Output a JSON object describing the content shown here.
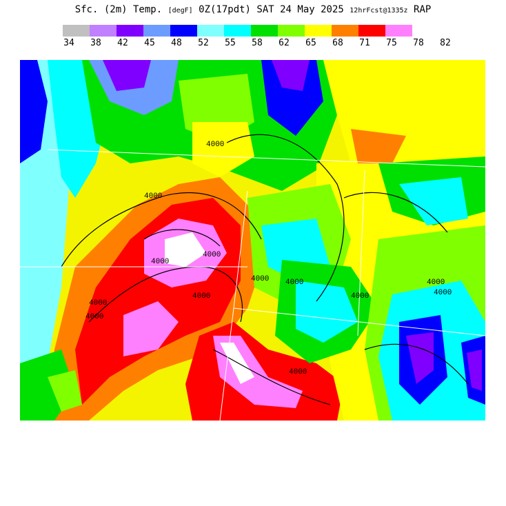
{
  "title": {
    "main": "Sfc. (2m) Temp.",
    "units": "[degF]",
    "run": "0Z(17pdt) SAT 24 May 2025",
    "forecast": "12hrFcst@1335z",
    "model": "RAP"
  },
  "legend": {
    "colors": [
      "#c0c0c0",
      "#c080ff",
      "#8000ff",
      "#6c9cff",
      "#0000ff",
      "#80ffff",
      "#00ffff",
      "#00e000",
      "#80ff00",
      "#ffff00",
      "#ff8000",
      "#ff0000",
      "#ff80ff"
    ],
    "ticks": [
      "34",
      "38",
      "42",
      "45",
      "48",
      "52",
      "55",
      "58",
      "62",
      "65",
      "68",
      "71",
      "75",
      "78",
      "82"
    ]
  },
  "contour_labels": [
    "4000",
    "4000",
    "4000",
    "4000",
    "4000",
    "4000",
    "4000",
    "4000",
    "4000",
    "4000",
    "4000",
    "4000",
    "4000"
  ]
}
